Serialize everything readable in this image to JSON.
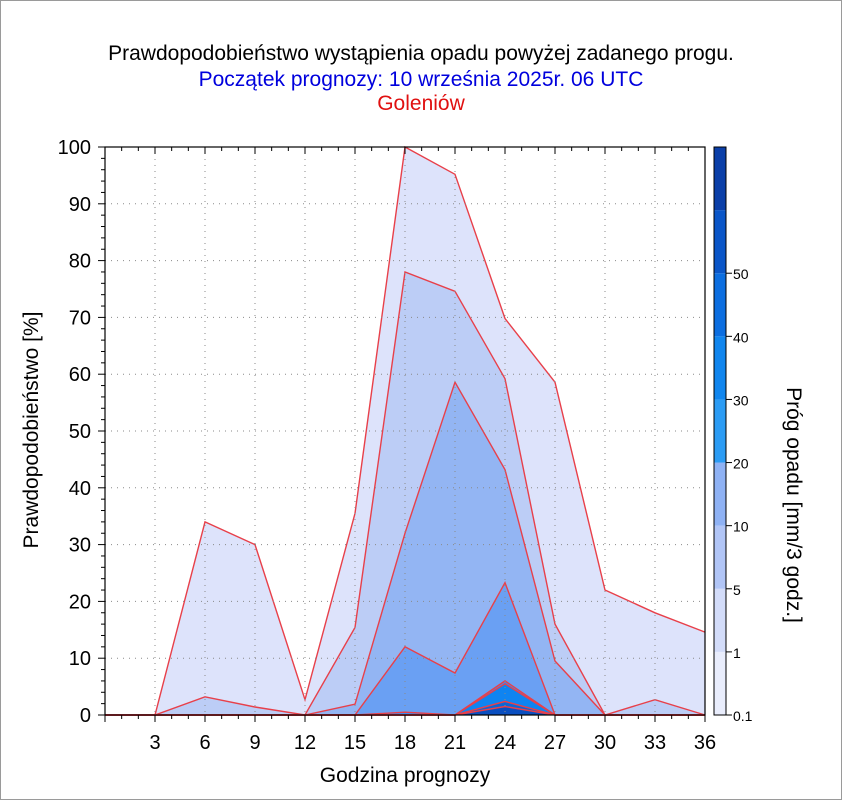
{
  "header": {
    "title": "Prawdopodobieństwo wystąpienia opadu powyżej zadanego progu.",
    "subtitle": "Początek prognozy: 10 września 2025r. 06 UTC",
    "station": "Goleniów"
  },
  "chart_data": {
    "type": "area",
    "xlabel": "Godzina prognozy",
    "ylabel": "Prawdopodobieństwo [%]",
    "colorbar_label": "Próg opadu [mm/3 godz.]",
    "xlim": [
      0,
      36
    ],
    "ylim": [
      0,
      100
    ],
    "x_ticks": [
      3,
      6,
      9,
      12,
      15,
      18,
      21,
      24,
      27,
      30,
      33,
      36
    ],
    "y_ticks": [
      0,
      10,
      20,
      30,
      40,
      50,
      60,
      70,
      80,
      90,
      100
    ],
    "grid": true,
    "line_color": "#e8404a",
    "x": [
      0,
      3,
      6,
      9,
      12,
      15,
      18,
      21,
      24,
      27,
      30,
      33,
      36
    ],
    "series": [
      {
        "name": "0.1",
        "color": "#dde3fb",
        "values": [
          0,
          0,
          34,
          30,
          2.7,
          35.5,
          100,
          95.2,
          69.8,
          58.6,
          22,
          18,
          14.6
        ]
      },
      {
        "name": "1",
        "color": "#bccdf6",
        "values": [
          0,
          0,
          3.2,
          1.4,
          0,
          15.4,
          78,
          74.6,
          59.2,
          16,
          0,
          2.7,
          0
        ]
      },
      {
        "name": "5",
        "color": "#93b5f3",
        "values": [
          0,
          0,
          0,
          0,
          0,
          1.9,
          32,
          58.6,
          43.2,
          9.5,
          0,
          0,
          0
        ]
      },
      {
        "name": "10",
        "color": "#6aa0f3",
        "values": [
          0,
          0,
          0,
          0,
          0,
          0,
          12,
          7.4,
          23.3,
          0,
          0,
          0,
          0
        ]
      },
      {
        "name": "20",
        "color": "#3a8ef5",
        "values": [
          0,
          0,
          0,
          0,
          0,
          0,
          0.5,
          0,
          6,
          0,
          0,
          0,
          0
        ]
      },
      {
        "name": "30",
        "color": "#0f84f0",
        "values": [
          0,
          0,
          0,
          0,
          0,
          0,
          0,
          0,
          5.5,
          0,
          0,
          0,
          0
        ]
      },
      {
        "name": "40",
        "color": "#0b66d6",
        "values": [
          0,
          0,
          0,
          0,
          0,
          0,
          0,
          0,
          2.4,
          0,
          0,
          0,
          0
        ]
      },
      {
        "name": "50",
        "color": "#0a4fc0",
        "values": [
          0,
          0,
          0,
          0,
          0,
          0,
          0,
          0,
          1.5,
          0,
          0,
          0,
          0
        ]
      }
    ],
    "colorbar": {
      "bands": [
        {
          "value": 0.1,
          "color": "#e9edfc"
        },
        {
          "value": 1,
          "color": "#d3dcf9"
        },
        {
          "value": 5,
          "color": "#b1c5f6"
        },
        {
          "value": 10,
          "color": "#8fb2f4"
        },
        {
          "value": 20,
          "color": "#2c9cf4"
        },
        {
          "value": 30,
          "color": "#1186ee"
        },
        {
          "value": 40,
          "color": "#0c6ee0"
        },
        {
          "value": 50,
          "color": "#0a56c8"
        },
        {
          "value": null,
          "color": "#0b3fa8"
        }
      ]
    }
  }
}
